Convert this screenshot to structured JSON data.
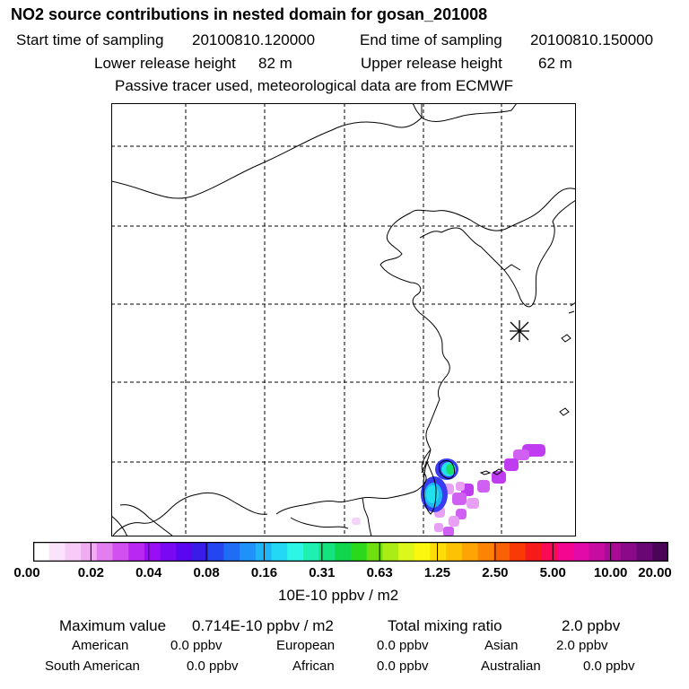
{
  "header": {
    "title": "NO2 source contributions in nested domain for gosan_201008",
    "start_label": "Start time of sampling",
    "start_value": "20100810.120000",
    "end_label": "End time of sampling",
    "end_value": "20100810.150000",
    "lower_label": "Lower release height",
    "lower_value": "82 m",
    "upper_label": "Upper release height",
    "upper_value": "62 m",
    "note": "Passive tracer used, meteorological data are from ECMWF"
  },
  "colorbar": {
    "colors": [
      "#ffffff",
      "#fbe3fb",
      "#f7cbf7",
      "#f0adf2",
      "#e27ef0",
      "#d24ff0",
      "#b928f3",
      "#9a0ef5",
      "#7a08f2",
      "#5a06ee",
      "#3a1ce8",
      "#2446f0",
      "#1f6df5",
      "#1e92f8",
      "#1fb6f8",
      "#22d8f4",
      "#2ef6e6",
      "#1ef0b2",
      "#15e37e",
      "#10d64e",
      "#2cd81b",
      "#6ee012",
      "#aaec16",
      "#dcf71b",
      "#fbf70f",
      "#fedc07",
      "#fec204",
      "#fea404",
      "#fd8304",
      "#fc6004",
      "#fa3a06",
      "#f61a1a",
      "#f90a55",
      "#f50690",
      "#e20aa8",
      "#c70ca2",
      "#a90b97",
      "#8a0a89",
      "#680874",
      "#4a0558"
    ],
    "tick_labels": [
      "0.00",
      "0.02",
      "0.04",
      "0.08",
      "0.16",
      "0.31",
      "0.63",
      "1.25",
      "2.50",
      "5.00",
      "10.00",
      "20.00"
    ],
    "unit": "10E-10 ppbv / m2"
  },
  "stats": {
    "max_label": "Maximum value",
    "max_value": "0.714E-10 ppbv / m2",
    "total_label": "Total mixing ratio",
    "total_value": "2.0 ppbv"
  },
  "regions": [
    {
      "name": "American",
      "value": "0.0 ppbv"
    },
    {
      "name": "European",
      "value": "0.0 ppbv"
    },
    {
      "name": "Asian",
      "value": "2.0 ppbv"
    },
    {
      "name": "South American",
      "value": "0.0 ppbv"
    },
    {
      "name": "African",
      "value": "0.0 ppbv"
    },
    {
      "name": "Australian",
      "value": "0.0 ppbv"
    }
  ],
  "map_colors": {
    "magenta": "#c03cf0",
    "light_magenta": "#e8a0f4",
    "blue": "#3a3cf2",
    "cyan": "#22e0ee",
    "green": "#18e070"
  }
}
